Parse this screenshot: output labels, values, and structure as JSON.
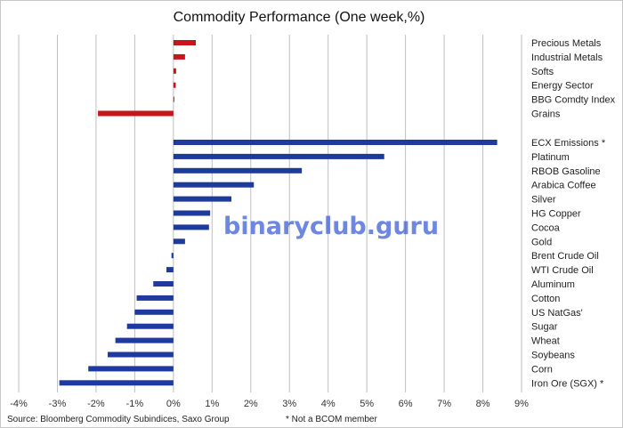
{
  "chart_data": {
    "type": "bar",
    "orientation": "horizontal",
    "title": "Commodity Performance (One week,%)",
    "x_tick_labels": [
      "-4%",
      "-3%",
      "-2%",
      "-1%",
      "0%",
      "1%",
      "2%",
      "3%",
      "4%",
      "5%",
      "6%",
      "7%",
      "8%",
      "9%"
    ],
    "xlim": [
      -4,
      9
    ],
    "grid": "vertical",
    "legend": "none",
    "groups": [
      {
        "color": "#c8141c",
        "categories": [
          "Precious Metals",
          "Industrial Metals",
          "Softs",
          "Energy Sector",
          "BBG Comdty Index",
          "Grains"
        ],
        "values": [
          0.58,
          0.3,
          0.07,
          0.06,
          0.02,
          -1.95
        ]
      },
      {
        "color": "#1f3a9e",
        "categories": [
          "ECX Emissions *",
          "Platinum",
          "RBOB Gasoline",
          "Arabica Coffee",
          "Silver",
          "HG Copper",
          "Cocoa",
          "Gold",
          "Brent Crude Oil",
          "WTI Crude Oil",
          "Aluminum",
          "Cotton",
          "US NatGas'",
          "Sugar",
          "Wheat",
          "Soybeans",
          "Corn",
          "Iron Ore (SGX) *"
        ],
        "values": [
          8.37,
          5.45,
          3.32,
          2.08,
          1.5,
          0.95,
          0.92,
          0.3,
          -0.05,
          -0.18,
          -0.52,
          -0.95,
          -1.0,
          -1.2,
          -1.5,
          -1.7,
          -2.2,
          -2.95
        ]
      }
    ]
  },
  "footer": {
    "source": "Source: Bloomberg Commodity Subindices, Saxo Group",
    "note": "* Not a BCOM member"
  },
  "watermark": "binaryclub.guru"
}
